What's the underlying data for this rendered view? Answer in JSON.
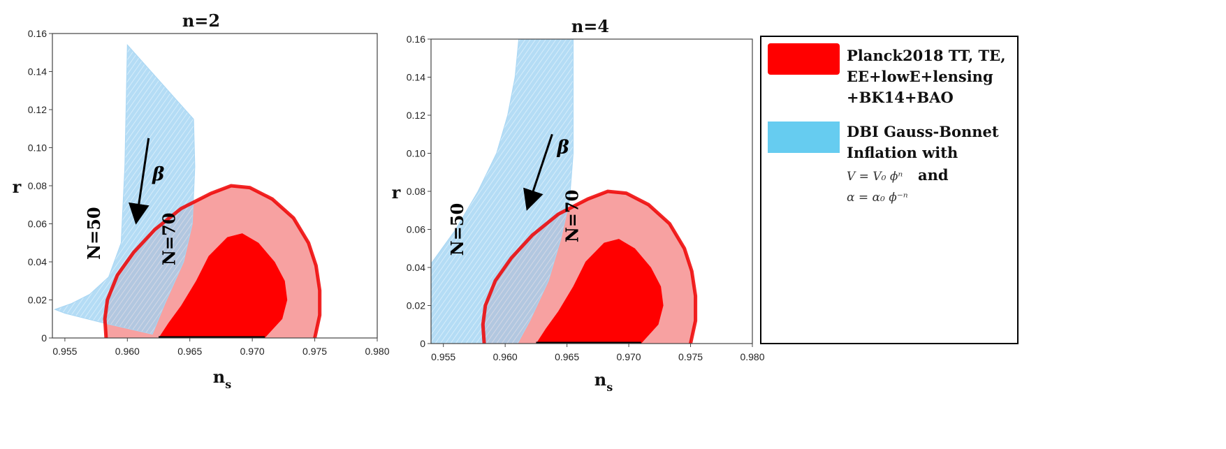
{
  "chart_data": [
    {
      "type": "area",
      "title": "n=2",
      "xlabel": "n",
      "xlabel_sub": "s",
      "ylabel": "r",
      "xlim": [
        0.954,
        0.98
      ],
      "ylim": [
        0,
        0.16
      ],
      "x_ticks": [
        "0.955",
        "0.960",
        "0.965",
        "0.970",
        "0.975",
        "0.980"
      ],
      "y_ticks": [
        "0",
        "0.02",
        "0.04",
        "0.06",
        "0.08",
        "0.10",
        "0.12",
        "0.14",
        "0.16"
      ],
      "series": [
        {
          "name": "Planck2018 TT, TE, EE+lowE+lensing +BK14+BAO",
          "role": "planck",
          "color_outer": "#f7a1a1",
          "color_inner": "#ff0000",
          "color_border": "#ee0000",
          "outer_contour": [
            [
              0.9583,
              0.0
            ],
            [
              0.9582,
              0.01
            ],
            [
              0.9584,
              0.02
            ],
            [
              0.9592,
              0.033
            ],
            [
              0.9605,
              0.045
            ],
            [
              0.9622,
              0.057
            ],
            [
              0.9643,
              0.068
            ],
            [
              0.9667,
              0.076
            ],
            [
              0.9683,
              0.08
            ],
            [
              0.9698,
              0.079
            ],
            [
              0.9716,
              0.073
            ],
            [
              0.9733,
              0.063
            ],
            [
              0.9745,
              0.05
            ],
            [
              0.9751,
              0.038
            ],
            [
              0.9754,
              0.025
            ],
            [
              0.9754,
              0.012
            ],
            [
              0.975,
              0.0
            ]
          ],
          "inner_contour": [
            [
              0.9625,
              0.0
            ],
            [
              0.9633,
              0.008
            ],
            [
              0.9643,
              0.017
            ],
            [
              0.9655,
              0.03
            ],
            [
              0.9665,
              0.043
            ],
            [
              0.968,
              0.053
            ],
            [
              0.9692,
              0.055
            ],
            [
              0.9705,
              0.05
            ],
            [
              0.9718,
              0.04
            ],
            [
              0.9726,
              0.03
            ],
            [
              0.9728,
              0.02
            ],
            [
              0.9724,
              0.01
            ],
            [
              0.971,
              0.0
            ]
          ]
        },
        {
          "name": "DBI Gauss-Bonnet Inflation with",
          "role": "model",
          "color": "#88c8f0",
          "band": [
            [
              0.9542,
              0.015
            ],
            [
              0.9555,
              0.018
            ],
            [
              0.957,
              0.023
            ],
            [
              0.9585,
              0.032
            ],
            [
              0.9595,
              0.05
            ],
            [
              0.9598,
              0.09
            ],
            [
              0.96,
              0.154
            ],
            [
              0.9653,
              0.115
            ],
            [
              0.9654,
              0.09
            ],
            [
              0.9652,
              0.06
            ],
            [
              0.9645,
              0.04
            ],
            [
              0.963,
              0.018
            ],
            [
              0.962,
              0.002
            ],
            [
              0.958,
              0.008
            ],
            [
              0.955,
              0.013
            ]
          ],
          "labels": [
            "N=50",
            "N=70"
          ]
        }
      ],
      "arrow_label": "β"
    },
    {
      "type": "area",
      "title": "n=4",
      "xlabel": "n",
      "xlabel_sub": "s",
      "ylabel": "r",
      "xlim": [
        0.954,
        0.98
      ],
      "ylim": [
        0,
        0.16
      ],
      "x_ticks": [
        "0.955",
        "0.960",
        "0.965",
        "0.970",
        "0.975",
        "0.980"
      ],
      "y_ticks": [
        "0",
        "0.02",
        "0.04",
        "0.06",
        "0.08",
        "0.10",
        "0.12",
        "0.14",
        "0.16"
      ],
      "series": [
        {
          "name": "Planck2018 TT, TE, EE+lowE+lensing +BK14+BAO",
          "role": "planck",
          "color_outer": "#f7a1a1",
          "color_inner": "#ff0000",
          "color_border": "#ee0000",
          "outer_contour": [
            [
              0.9583,
              0.0
            ],
            [
              0.9582,
              0.01
            ],
            [
              0.9584,
              0.02
            ],
            [
              0.9592,
              0.033
            ],
            [
              0.9605,
              0.045
            ],
            [
              0.9622,
              0.057
            ],
            [
              0.9643,
              0.068
            ],
            [
              0.9667,
              0.076
            ],
            [
              0.9683,
              0.08
            ],
            [
              0.9698,
              0.079
            ],
            [
              0.9716,
              0.073
            ],
            [
              0.9733,
              0.063
            ],
            [
              0.9745,
              0.05
            ],
            [
              0.9751,
              0.038
            ],
            [
              0.9754,
              0.025
            ],
            [
              0.9754,
              0.012
            ],
            [
              0.975,
              0.0
            ]
          ],
          "inner_contour": [
            [
              0.9625,
              0.0
            ],
            [
              0.9633,
              0.008
            ],
            [
              0.9643,
              0.017
            ],
            [
              0.9655,
              0.03
            ],
            [
              0.9665,
              0.043
            ],
            [
              0.968,
              0.053
            ],
            [
              0.9692,
              0.055
            ],
            [
              0.9705,
              0.05
            ],
            [
              0.9718,
              0.04
            ],
            [
              0.9726,
              0.03
            ],
            [
              0.9728,
              0.02
            ],
            [
              0.9724,
              0.01
            ],
            [
              0.971,
              0.0
            ]
          ]
        },
        {
          "name": "DBI Gauss-Bonnet Inflation with",
          "role": "model",
          "color": "#88c8f0",
          "band": [
            [
              0.954,
              0.0
            ],
            [
              0.954,
              0.042
            ],
            [
              0.956,
              0.06
            ],
            [
              0.9578,
              0.08
            ],
            [
              0.9593,
              0.1
            ],
            [
              0.9602,
              0.12
            ],
            [
              0.9608,
              0.14
            ],
            [
              0.9611,
              0.16
            ],
            [
              0.9655,
              0.16
            ],
            [
              0.9655,
              0.1
            ],
            [
              0.9652,
              0.075
            ],
            [
              0.9645,
              0.055
            ],
            [
              0.9635,
              0.033
            ],
            [
              0.962,
              0.012
            ],
            [
              0.961,
              0.0
            ]
          ],
          "labels": [
            "N=50",
            "N=70"
          ]
        }
      ],
      "arrow_label": "β"
    }
  ],
  "legend": {
    "planck_lines": [
      "Planck2018 TT, TE,",
      "EE+lowE+lensing",
      "+BK14+BAO"
    ],
    "planck_color": "#ff0000",
    "model_lines": [
      "DBI Gauss-Bonnet",
      "Inflation with"
    ],
    "model_color": "#66ccf0",
    "potential": "V = V₀ ϕⁿ",
    "coupling": "α = α₀ ϕ⁻ⁿ",
    "and_text": "and"
  }
}
